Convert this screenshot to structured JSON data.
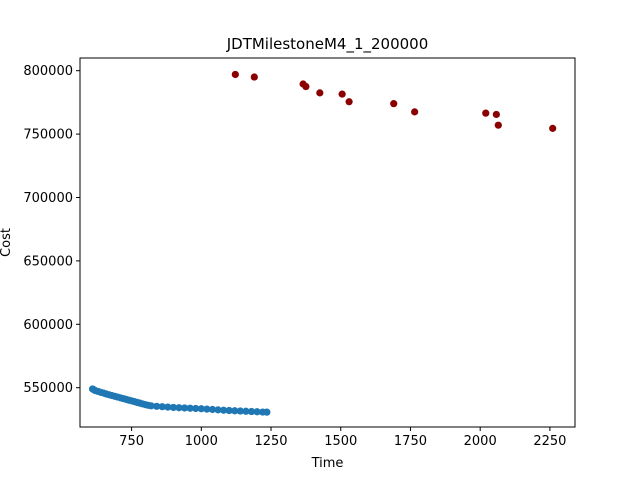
{
  "chart_data": {
    "type": "scatter",
    "title": "JDTMilestoneM4_1_200000",
    "xlabel": "Time",
    "ylabel": "Cost",
    "xlim": [
      565,
      2340
    ],
    "ylim": [
      519000,
      810000
    ],
    "xticks": [
      750,
      1000,
      1250,
      1500,
      1750,
      2000,
      2250
    ],
    "yticks": [
      550000,
      600000,
      650000,
      700000,
      750000,
      800000
    ],
    "xtick_labels": [
      "750",
      "1000",
      "1250",
      "1500",
      "1750",
      "2000",
      "2250"
    ],
    "ytick_labels": [
      "550000",
      "600000",
      "650000",
      "700000",
      "750000",
      "800000"
    ],
    "grid": false,
    "series": [
      {
        "color": "#1f77b4",
        "points": [
          [
            610,
            549000
          ],
          [
            615,
            548300
          ],
          [
            620,
            547700
          ],
          [
            630,
            547000
          ],
          [
            640,
            546300
          ],
          [
            650,
            545700
          ],
          [
            660,
            545000
          ],
          [
            670,
            544400
          ],
          [
            680,
            543800
          ],
          [
            690,
            543200
          ],
          [
            700,
            542600
          ],
          [
            710,
            542000
          ],
          [
            720,
            541400
          ],
          [
            730,
            540800
          ],
          [
            740,
            540200
          ],
          [
            750,
            539600
          ],
          [
            760,
            539000
          ],
          [
            770,
            538400
          ],
          [
            780,
            537800
          ],
          [
            790,
            537200
          ],
          [
            800,
            536600
          ],
          [
            810,
            536100
          ],
          [
            820,
            535700
          ],
          [
            840,
            535300
          ],
          [
            860,
            535000
          ],
          [
            880,
            534700
          ],
          [
            900,
            534400
          ],
          [
            920,
            534200
          ],
          [
            940,
            534000
          ],
          [
            960,
            533800
          ],
          [
            980,
            533600
          ],
          [
            1000,
            533400
          ],
          [
            1020,
            533100
          ],
          [
            1040,
            532800
          ],
          [
            1060,
            532500
          ],
          [
            1080,
            532200
          ],
          [
            1100,
            532000
          ],
          [
            1120,
            531800
          ],
          [
            1140,
            531600
          ],
          [
            1160,
            531400
          ],
          [
            1180,
            531200
          ],
          [
            1200,
            531000
          ],
          [
            1220,
            530800
          ],
          [
            1235,
            530700
          ]
        ]
      },
      {
        "color": "#8b0000",
        "points": [
          [
            1122,
            797000
          ],
          [
            1190,
            795000
          ],
          [
            1365,
            789500
          ],
          [
            1375,
            787500
          ],
          [
            1425,
            782500
          ],
          [
            1505,
            781500
          ],
          [
            1530,
            775500
          ],
          [
            1690,
            774000
          ],
          [
            1765,
            767500
          ],
          [
            2020,
            766500
          ],
          [
            2058,
            765500
          ],
          [
            2065,
            757000
          ],
          [
            2260,
            754500
          ]
        ]
      }
    ]
  }
}
